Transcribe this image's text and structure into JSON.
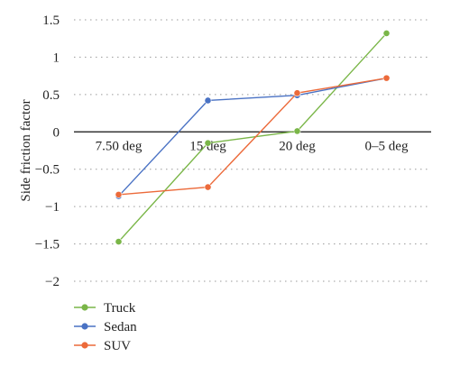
{
  "chart_data": {
    "type": "line",
    "categories": [
      "7.50 deg",
      "15 deg",
      "20 deg",
      "0–5 deg"
    ],
    "ylabel": "Side friction factor",
    "xlabel": "",
    "ylim": [
      -2,
      1.5
    ],
    "yticks": [
      1.5,
      1,
      0.5,
      0,
      -0.5,
      -1,
      -1.5,
      -2
    ],
    "ytick_labels": [
      "1.5",
      "1",
      "0.5",
      "0",
      "−0.5",
      "−1",
      "−1.5",
      "−2"
    ],
    "grid": "horizontal dotted",
    "legend_position": "bottom-left",
    "series": [
      {
        "name": "Truck",
        "color": "#7ab648",
        "values": [
          -1.47,
          -0.15,
          0.01,
          1.32
        ]
      },
      {
        "name": "Sedan",
        "color": "#4a72c4",
        "values": [
          -0.86,
          0.42,
          0.49,
          0.72
        ]
      },
      {
        "name": "SUV",
        "color": "#ec6a3a",
        "values": [
          -0.84,
          -0.74,
          0.52,
          0.72
        ]
      }
    ]
  }
}
